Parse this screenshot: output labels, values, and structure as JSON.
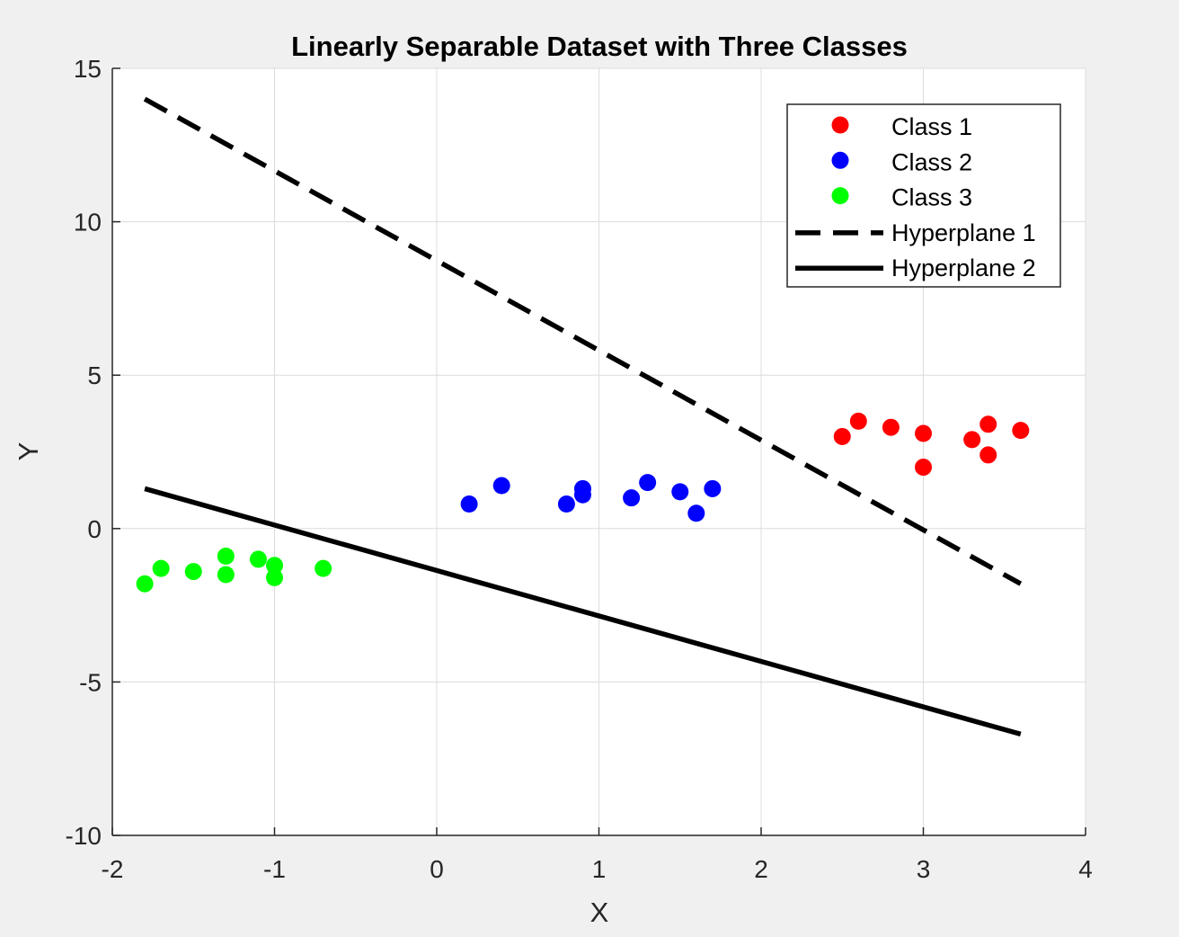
{
  "chart_data": {
    "type": "scatter",
    "title": "Linearly Separable Dataset with Three Classes",
    "xlabel": "X",
    "ylabel": "Y",
    "xlim": [
      -2,
      4
    ],
    "ylim": [
      -10,
      15
    ],
    "xticks": [
      -2,
      -1,
      0,
      1,
      2,
      3,
      4
    ],
    "yticks": [
      -10,
      -5,
      0,
      5,
      10,
      15
    ],
    "grid": true,
    "legend_position": "top-right",
    "series": [
      {
        "name": "Class 1",
        "kind": "points",
        "color": "#ff0000",
        "points": [
          [
            2.5,
            3.0
          ],
          [
            2.6,
            3.5
          ],
          [
            2.8,
            3.3
          ],
          [
            3.0,
            3.1
          ],
          [
            3.0,
            2.0
          ],
          [
            3.3,
            2.9
          ],
          [
            3.4,
            3.4
          ],
          [
            3.4,
            2.4
          ],
          [
            3.6,
            3.2
          ]
        ]
      },
      {
        "name": "Class 2",
        "kind": "points",
        "color": "#0000ff",
        "points": [
          [
            0.2,
            0.8
          ],
          [
            0.4,
            1.4
          ],
          [
            0.8,
            0.8
          ],
          [
            0.9,
            1.3
          ],
          [
            0.9,
            1.1
          ],
          [
            1.2,
            1.0
          ],
          [
            1.3,
            1.5
          ],
          [
            1.5,
            1.2
          ],
          [
            1.6,
            0.5
          ],
          [
            1.7,
            1.3
          ]
        ]
      },
      {
        "name": "Class 3",
        "kind": "points",
        "color": "#00ff00",
        "points": [
          [
            -1.8,
            -1.8
          ],
          [
            -1.7,
            -1.3
          ],
          [
            -1.5,
            -1.4
          ],
          [
            -1.3,
            -0.9
          ],
          [
            -1.3,
            -1.5
          ],
          [
            -1.1,
            -1.0
          ],
          [
            -1.0,
            -1.2
          ],
          [
            -1.0,
            -1.6
          ],
          [
            -0.7,
            -1.3
          ]
        ]
      },
      {
        "name": "Hyperplane 1",
        "kind": "line",
        "style": "dashed",
        "color": "#000000",
        "points": [
          [
            -1.8,
            14.0
          ],
          [
            3.6,
            -1.8
          ]
        ]
      },
      {
        "name": "Hyperplane 2",
        "kind": "line",
        "style": "solid",
        "color": "#000000",
        "points": [
          [
            -1.8,
            1.3
          ],
          [
            3.6,
            -6.7
          ]
        ]
      }
    ]
  }
}
